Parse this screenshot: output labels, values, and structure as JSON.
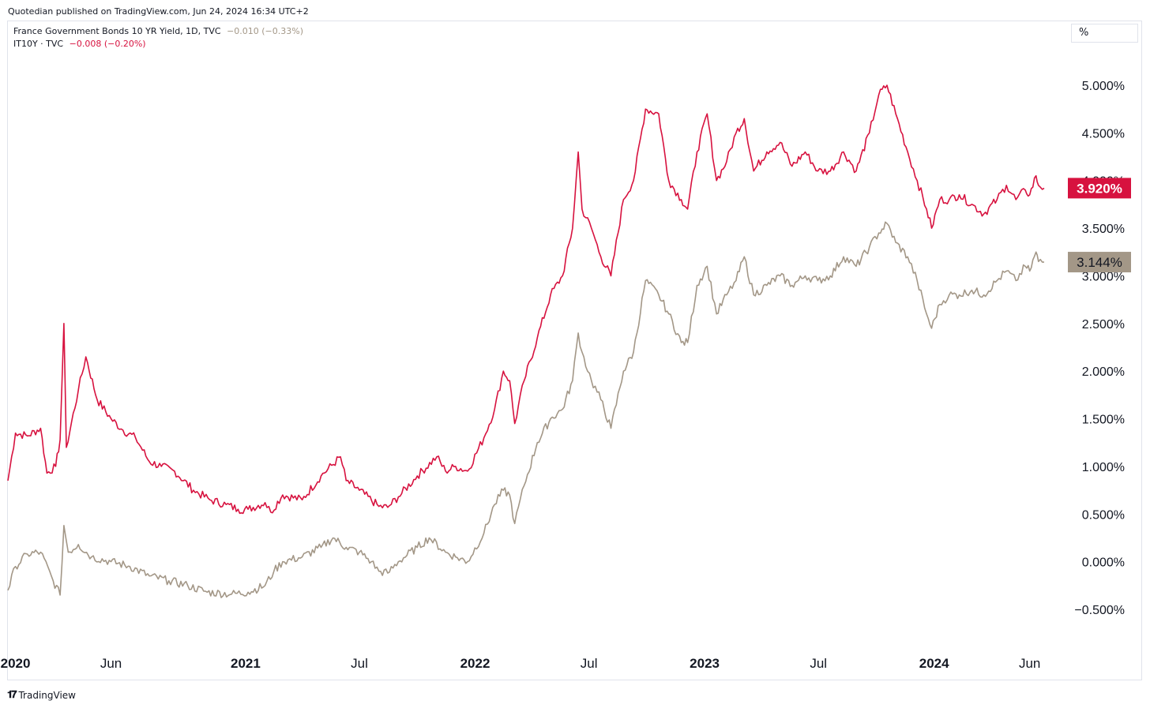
{
  "header": {
    "publisher": "Quotedian published on TradingView.com, Jun 24, 2024 16:34 UTC+2"
  },
  "legend": [
    {
      "name": "France Government Bonds 10 YR Yield, 1D, TVC",
      "change": "−0.010 (−0.33%)",
      "color": "#a39787"
    },
    {
      "name": "IT10Y · TVC",
      "change": "−0.008 (−0.20%)",
      "color": "#d7123f"
    }
  ],
  "scale_button": {
    "label": "%"
  },
  "footer": {
    "brand": "TradingView",
    "logo_glyph": "𝟏𝟕"
  },
  "chart_data": {
    "type": "line",
    "x_range": [
      "2020-01-01",
      "2024-06-24"
    ],
    "ylim": [
      -0.8,
      5.4
    ],
    "y_tick_labels": [
      "5.000%",
      "4.500%",
      "4.000%",
      "3.500%",
      "3.000%",
      "2.500%",
      "2.000%",
      "1.500%",
      "1.000%",
      "0.500%",
      "0.000%",
      "−0.500%"
    ],
    "y_tick_values": [
      5.0,
      4.5,
      4.0,
      3.5,
      3.0,
      2.5,
      2.0,
      1.5,
      1.0,
      0.5,
      0.0,
      -0.5
    ],
    "x_tick_labels": [
      {
        "date": "2020-01-01",
        "label": "2020",
        "bold": true
      },
      {
        "date": "2020-06-01",
        "label": "Jun",
        "bold": false
      },
      {
        "date": "2021-01-01",
        "label": "2021",
        "bold": true
      },
      {
        "date": "2021-07-01",
        "label": "Jul",
        "bold": false
      },
      {
        "date": "2022-01-01",
        "label": "2022",
        "bold": true
      },
      {
        "date": "2022-07-01",
        "label": "Jul",
        "bold": false
      },
      {
        "date": "2023-01-01",
        "label": "2023",
        "bold": true
      },
      {
        "date": "2023-07-01",
        "label": "Jul",
        "bold": false
      },
      {
        "date": "2024-01-01",
        "label": "2024",
        "bold": true
      },
      {
        "date": "2024-06-01",
        "label": "Jun",
        "bold": false
      }
    ],
    "grid": false,
    "series": [
      {
        "name": "IT10Y",
        "color": "#d7123f",
        "last_label": "3.920%",
        "last_value": 3.92,
        "points": [
          [
            "2019-12-20",
            0.85
          ],
          [
            "2020-01-01",
            1.35
          ],
          [
            "2020-01-20",
            1.32
          ],
          [
            "2020-02-10",
            1.4
          ],
          [
            "2020-02-20",
            0.93
          ],
          [
            "2020-03-05",
            1.0
          ],
          [
            "2020-03-12",
            1.28
          ],
          [
            "2020-03-18",
            2.5
          ],
          [
            "2020-03-22",
            1.2
          ],
          [
            "2020-04-10",
            1.8
          ],
          [
            "2020-04-22",
            2.15
          ],
          [
            "2020-05-10",
            1.7
          ],
          [
            "2020-06-01",
            1.5
          ],
          [
            "2020-06-20",
            1.38
          ],
          [
            "2020-07-10",
            1.3
          ],
          [
            "2020-08-01",
            1.05
          ],
          [
            "2020-08-20",
            1.0
          ],
          [
            "2020-09-10",
            0.95
          ],
          [
            "2020-10-10",
            0.75
          ],
          [
            "2020-11-05",
            0.65
          ],
          [
            "2020-12-01",
            0.6
          ],
          [
            "2020-12-20",
            0.55
          ],
          [
            "2021-01-05",
            0.55
          ],
          [
            "2021-02-01",
            0.62
          ],
          [
            "2021-02-10",
            0.52
          ],
          [
            "2021-03-01",
            0.7
          ],
          [
            "2021-04-01",
            0.65
          ],
          [
            "2021-05-01",
            0.9
          ],
          [
            "2021-06-01",
            1.1
          ],
          [
            "2021-06-10",
            0.85
          ],
          [
            "2021-07-01",
            0.75
          ],
          [
            "2021-08-01",
            0.58
          ],
          [
            "2021-08-15",
            0.57
          ],
          [
            "2021-09-01",
            0.68
          ],
          [
            "2021-10-01",
            0.9
          ],
          [
            "2021-11-01",
            1.1
          ],
          [
            "2021-11-15",
            0.95
          ],
          [
            "2021-12-01",
            1.0
          ],
          [
            "2021-12-20",
            0.95
          ],
          [
            "2022-01-15",
            1.3
          ],
          [
            "2022-02-01",
            1.6
          ],
          [
            "2022-02-15",
            2.0
          ],
          [
            "2022-02-25",
            1.9
          ],
          [
            "2022-03-05",
            1.45
          ],
          [
            "2022-03-20",
            1.9
          ],
          [
            "2022-04-10",
            2.35
          ],
          [
            "2022-05-01",
            2.8
          ],
          [
            "2022-05-20",
            3.0
          ],
          [
            "2022-06-05",
            3.5
          ],
          [
            "2022-06-14",
            4.3
          ],
          [
            "2022-06-20",
            3.7
          ],
          [
            "2022-07-05",
            3.5
          ],
          [
            "2022-07-20",
            3.2
          ],
          [
            "2022-08-05",
            3.0
          ],
          [
            "2022-08-25",
            3.8
          ],
          [
            "2022-09-10",
            4.0
          ],
          [
            "2022-09-29",
            4.75
          ],
          [
            "2022-10-20",
            4.7
          ],
          [
            "2022-11-05",
            4.0
          ],
          [
            "2022-11-25",
            3.8
          ],
          [
            "2022-12-05",
            3.7
          ],
          [
            "2022-12-20",
            4.3
          ],
          [
            "2023-01-05",
            4.7
          ],
          [
            "2023-01-20",
            4.0
          ],
          [
            "2023-02-05",
            4.2
          ],
          [
            "2023-02-20",
            4.5
          ],
          [
            "2023-03-05",
            4.65
          ],
          [
            "2023-03-20",
            4.1
          ],
          [
            "2023-04-10",
            4.3
          ],
          [
            "2023-05-01",
            4.4
          ],
          [
            "2023-05-20",
            4.15
          ],
          [
            "2023-06-10",
            4.3
          ],
          [
            "2023-06-30",
            4.1
          ],
          [
            "2023-07-20",
            4.1
          ],
          [
            "2023-08-10",
            4.3
          ],
          [
            "2023-08-30",
            4.1
          ],
          [
            "2023-09-20",
            4.5
          ],
          [
            "2023-10-05",
            4.9
          ],
          [
            "2023-10-18",
            5.0
          ],
          [
            "2023-11-01",
            4.7
          ],
          [
            "2023-11-20",
            4.3
          ],
          [
            "2023-12-05",
            4.0
          ],
          [
            "2023-12-20",
            3.7
          ],
          [
            "2023-12-28",
            3.5
          ],
          [
            "2024-01-10",
            3.8
          ],
          [
            "2024-01-25",
            3.8
          ],
          [
            "2024-02-10",
            3.85
          ],
          [
            "2024-03-01",
            3.75
          ],
          [
            "2024-03-20",
            3.65
          ],
          [
            "2024-04-10",
            3.8
          ],
          [
            "2024-04-25",
            3.95
          ],
          [
            "2024-05-10",
            3.8
          ],
          [
            "2024-05-25",
            3.9
          ],
          [
            "2024-06-01",
            3.85
          ],
          [
            "2024-06-11",
            4.05
          ],
          [
            "2024-06-15",
            3.95
          ],
          [
            "2024-06-24",
            3.92
          ]
        ]
      },
      {
        "name": "France Government Bonds 10 YR Yield",
        "color": "#a39787",
        "last_label": "3.144%",
        "last_value": 3.144,
        "points": [
          [
            "2019-12-20",
            -0.3
          ],
          [
            "2020-01-01",
            -0.05
          ],
          [
            "2020-01-20",
            0.08
          ],
          [
            "2020-02-10",
            0.1
          ],
          [
            "2020-03-01",
            -0.2
          ],
          [
            "2020-03-12",
            -0.35
          ],
          [
            "2020-03-18",
            0.38
          ],
          [
            "2020-03-25",
            0.1
          ],
          [
            "2020-04-10",
            0.18
          ],
          [
            "2020-05-01",
            0.05
          ],
          [
            "2020-06-01",
            0.0
          ],
          [
            "2020-07-01",
            -0.05
          ],
          [
            "2020-08-01",
            -0.15
          ],
          [
            "2020-09-01",
            -0.2
          ],
          [
            "2020-10-01",
            -0.25
          ],
          [
            "2020-11-01",
            -0.32
          ],
          [
            "2020-12-10",
            -0.34
          ],
          [
            "2021-01-05",
            -0.32
          ],
          [
            "2021-02-01",
            -0.25
          ],
          [
            "2021-02-15",
            -0.1
          ],
          [
            "2021-03-01",
            0.0
          ],
          [
            "2021-04-01",
            0.05
          ],
          [
            "2021-05-01",
            0.15
          ],
          [
            "2021-05-20",
            0.25
          ],
          [
            "2021-06-10",
            0.15
          ],
          [
            "2021-07-01",
            0.1
          ],
          [
            "2021-07-20",
            0.0
          ],
          [
            "2021-08-01",
            -0.1
          ],
          [
            "2021-08-15",
            -0.12
          ],
          [
            "2021-09-01",
            0.0
          ],
          [
            "2021-10-01",
            0.15
          ],
          [
            "2021-10-20",
            0.25
          ],
          [
            "2021-11-15",
            0.1
          ],
          [
            "2021-12-01",
            0.05
          ],
          [
            "2021-12-20",
            0.0
          ],
          [
            "2022-01-15",
            0.3
          ],
          [
            "2022-02-01",
            0.6
          ],
          [
            "2022-02-15",
            0.75
          ],
          [
            "2022-02-25",
            0.7
          ],
          [
            "2022-03-05",
            0.4
          ],
          [
            "2022-03-20",
            0.8
          ],
          [
            "2022-04-10",
            1.25
          ],
          [
            "2022-05-01",
            1.5
          ],
          [
            "2022-05-20",
            1.6
          ],
          [
            "2022-06-05",
            1.9
          ],
          [
            "2022-06-14",
            2.4
          ],
          [
            "2022-06-20",
            2.2
          ],
          [
            "2022-07-05",
            1.9
          ],
          [
            "2022-07-20",
            1.7
          ],
          [
            "2022-08-05",
            1.4
          ],
          [
            "2022-08-25",
            2.0
          ],
          [
            "2022-09-10",
            2.2
          ],
          [
            "2022-09-29",
            2.95
          ],
          [
            "2022-10-20",
            2.8
          ],
          [
            "2022-11-05",
            2.6
          ],
          [
            "2022-11-25",
            2.3
          ],
          [
            "2022-12-05",
            2.3
          ],
          [
            "2022-12-20",
            2.9
          ],
          [
            "2023-01-05",
            3.1
          ],
          [
            "2023-01-20",
            2.6
          ],
          [
            "2023-02-05",
            2.8
          ],
          [
            "2023-02-20",
            2.95
          ],
          [
            "2023-03-05",
            3.2
          ],
          [
            "2023-03-20",
            2.8
          ],
          [
            "2023-04-10",
            2.9
          ],
          [
            "2023-05-01",
            3.0
          ],
          [
            "2023-05-20",
            2.9
          ],
          [
            "2023-06-10",
            3.0
          ],
          [
            "2023-06-30",
            2.95
          ],
          [
            "2023-07-20",
            3.0
          ],
          [
            "2023-08-10",
            3.2
          ],
          [
            "2023-08-30",
            3.1
          ],
          [
            "2023-09-20",
            3.3
          ],
          [
            "2023-10-05",
            3.45
          ],
          [
            "2023-10-18",
            3.55
          ],
          [
            "2023-11-01",
            3.35
          ],
          [
            "2023-11-20",
            3.2
          ],
          [
            "2023-12-05",
            2.95
          ],
          [
            "2023-12-20",
            2.6
          ],
          [
            "2023-12-28",
            2.45
          ],
          [
            "2024-01-10",
            2.7
          ],
          [
            "2024-01-25",
            2.8
          ],
          [
            "2024-02-10",
            2.8
          ],
          [
            "2024-03-01",
            2.85
          ],
          [
            "2024-03-20",
            2.8
          ],
          [
            "2024-04-10",
            2.95
          ],
          [
            "2024-04-25",
            3.05
          ],
          [
            "2024-05-10",
            2.95
          ],
          [
            "2024-05-25",
            3.1
          ],
          [
            "2024-06-01",
            3.05
          ],
          [
            "2024-06-11",
            3.25
          ],
          [
            "2024-06-15",
            3.15
          ],
          [
            "2024-06-24",
            3.144
          ]
        ]
      }
    ]
  }
}
